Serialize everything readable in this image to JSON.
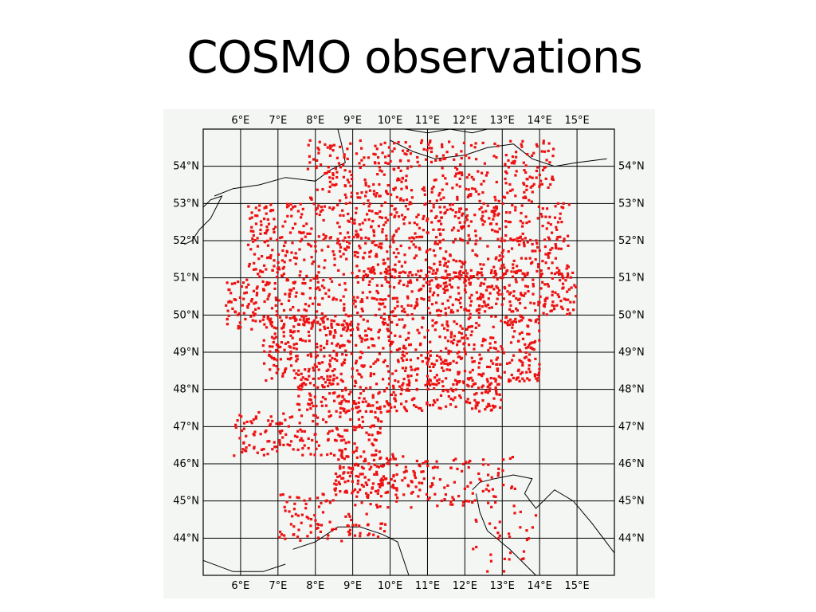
{
  "title": "COSMO observations",
  "map": {
    "lon_labels": [
      "6°E",
      "7°E",
      "8°E",
      "9°E",
      "10°E",
      "11°E",
      "12°E",
      "13°E",
      "14°E",
      "15°E"
    ],
    "lat_labels": [
      "54°N",
      "53°N",
      "52°N",
      "51°N",
      "50°N",
      "49°N",
      "48°N",
      "47°N",
      "46°N",
      "45°N",
      "44°N"
    ],
    "lon_range": [
      5,
      16
    ],
    "lat_range": [
      43,
      55
    ],
    "point_color": "#ee1111",
    "coast_color": "#000000"
  },
  "coastlines": [
    {
      "name": "north-sea-coast",
      "points": [
        [
          5.3,
          53.2
        ],
        [
          5.8,
          53.4
        ],
        [
          6.5,
          53.5
        ],
        [
          7.2,
          53.7
        ],
        [
          8.0,
          53.6
        ],
        [
          8.4,
          53.9
        ],
        [
          8.8,
          54.1
        ],
        [
          8.7,
          54.6
        ],
        [
          8.6,
          55.0
        ]
      ]
    },
    {
      "name": "dutch-coast",
      "points": [
        [
          5.0,
          52.9
        ],
        [
          5.2,
          53.1
        ],
        [
          5.5,
          53.2
        ],
        [
          5.2,
          52.6
        ],
        [
          4.9,
          52.3
        ],
        [
          4.7,
          52.0
        ],
        [
          4.5,
          51.9
        ]
      ]
    },
    {
      "name": "baltic-coast",
      "points": [
        [
          10.0,
          54.7
        ],
        [
          10.6,
          54.4
        ],
        [
          11.2,
          54.2
        ],
        [
          12.0,
          54.3
        ],
        [
          12.6,
          54.5
        ],
        [
          13.3,
          54.6
        ],
        [
          13.8,
          54.2
        ],
        [
          14.4,
          54.0
        ],
        [
          15.0,
          54.1
        ],
        [
          15.8,
          54.2
        ]
      ]
    },
    {
      "name": "danish-coast",
      "points": [
        [
          10.4,
          55.0
        ],
        [
          11.0,
          54.9
        ],
        [
          11.6,
          55.0
        ],
        [
          12.2,
          54.9
        ],
        [
          12.6,
          55.0
        ]
      ]
    },
    {
      "name": "ligurian-coast",
      "points": [
        [
          7.4,
          43.7
        ],
        [
          8.0,
          43.9
        ],
        [
          8.6,
          44.3
        ],
        [
          9.2,
          44.3
        ],
        [
          9.8,
          44.1
        ],
        [
          10.2,
          43.9
        ],
        [
          10.5,
          43.0
        ]
      ]
    },
    {
      "name": "adriatic-coast",
      "points": [
        [
          12.2,
          45.3
        ],
        [
          12.4,
          45.5
        ],
        [
          12.8,
          45.6
        ],
        [
          13.3,
          45.7
        ],
        [
          13.8,
          45.6
        ],
        [
          13.6,
          45.2
        ],
        [
          13.9,
          44.8
        ],
        [
          14.4,
          45.3
        ],
        [
          14.9,
          45.0
        ],
        [
          15.4,
          44.4
        ],
        [
          16.0,
          43.6
        ]
      ]
    },
    {
      "name": "italy-east-coast",
      "points": [
        [
          12.3,
          45.2
        ],
        [
          12.4,
          44.7
        ],
        [
          12.6,
          44.2
        ],
        [
          13.2,
          43.7
        ],
        [
          13.6,
          43.3
        ],
        [
          13.9,
          43.0
        ]
      ]
    },
    {
      "name": "corsica-mediterranean",
      "points": [
        [
          5.0,
          43.4
        ],
        [
          5.8,
          43.1
        ],
        [
          6.6,
          43.1
        ],
        [
          7.2,
          43.3
        ]
      ]
    }
  ]
}
